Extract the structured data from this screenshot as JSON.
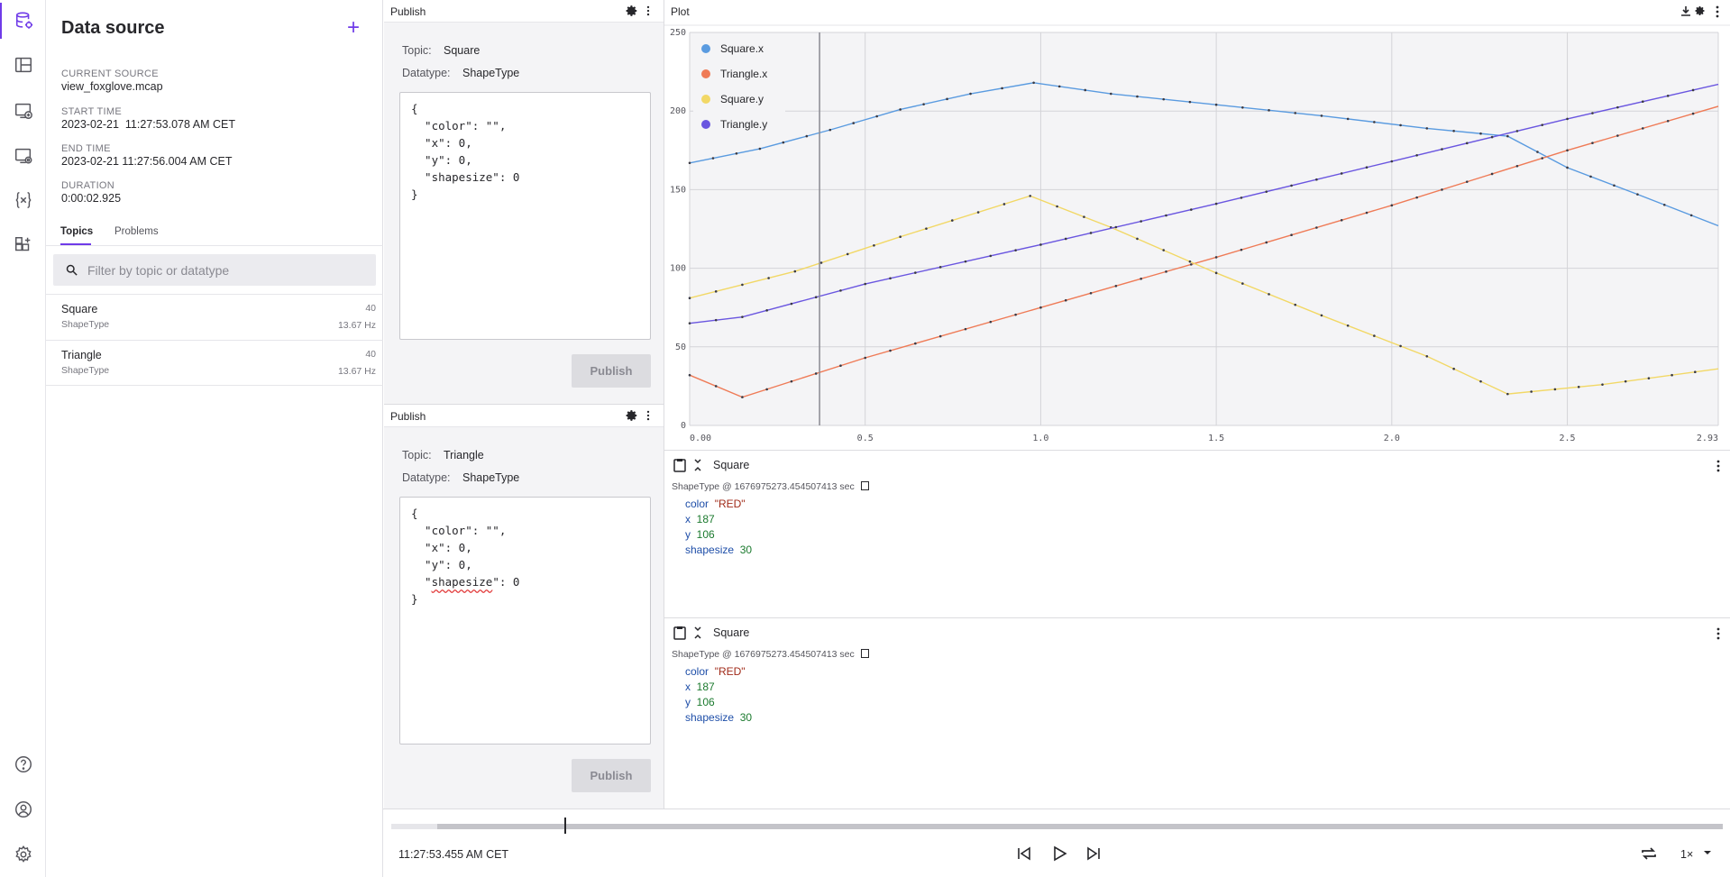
{
  "rail": {
    "icons": [
      "data-source-icon",
      "panels-icon",
      "add-panel-icon",
      "panel-settings-icon",
      "variables-icon",
      "extensions-icon",
      "help-icon",
      "user-icon",
      "settings-icon"
    ]
  },
  "sidebar": {
    "title": "Data source",
    "current_source_label": "CURRENT SOURCE",
    "current_source": "view_foxglove.mcap",
    "start_time_label": "START TIME",
    "start_time": "2023-02-21  11:27:53.078 AM CET",
    "end_time_label": "END TIME",
    "end_time": "2023-02-21 11:27:56.004 AM CET",
    "duration_label": "DURATION",
    "duration": "0:00:02.925",
    "tabs": [
      {
        "label": "Topics"
      },
      {
        "label": "Problems"
      }
    ],
    "filter_placeholder": "Filter by topic or datatype",
    "topics": [
      {
        "name": "Square",
        "type": "ShapeType",
        "count": "40",
        "hz": "13.67 Hz"
      },
      {
        "name": "Triangle",
        "type": "ShapeType",
        "count": "40",
        "hz": "13.67 Hz"
      }
    ]
  },
  "publish_panels": [
    {
      "title": "Publish",
      "topic_label": "Topic:",
      "topic": "Square",
      "datatype_label": "Datatype:",
      "datatype": "ShapeType",
      "editor_lines": [
        "{",
        "  \"color\": \"\",",
        "  \"x\": 0,",
        "  \"y\": 0,",
        "  \"shapesize\": 0",
        "}"
      ],
      "button": "Publish"
    },
    {
      "title": "Publish",
      "topic_label": "Topic:",
      "topic": "Triangle",
      "datatype_label": "Datatype:",
      "datatype": "ShapeType",
      "editor_lines": [
        "{",
        "  \"color\": \"\",",
        "  \"x\": 0,",
        "  \"y\": 0,",
        "  \"shapesize\": 0",
        "}"
      ],
      "button": "Publish"
    }
  ],
  "plot_panel": {
    "title": "Plot"
  },
  "chart_data": {
    "type": "line",
    "xlim": [
      0,
      2.93
    ],
    "ylim": [
      0,
      250
    ],
    "x_ticks": [
      "0.00",
      "0.5",
      "1.0",
      "1.5",
      "2.0",
      "2.5",
      "2.93"
    ],
    "y_ticks": [
      "0",
      "50",
      "100",
      "150",
      "200",
      "250"
    ],
    "grid": true,
    "legend_position": "top-left",
    "cursor_x": 0.37,
    "series": [
      {
        "name": "Square.x",
        "color": "#5a9be0",
        "points": [
          [
            0.0,
            167
          ],
          [
            0.2,
            176
          ],
          [
            0.4,
            188
          ],
          [
            0.6,
            201
          ],
          [
            0.8,
            211
          ],
          [
            0.98,
            218
          ],
          [
            1.2,
            211
          ],
          [
            1.5,
            204
          ],
          [
            1.8,
            197
          ],
          [
            2.1,
            189
          ],
          [
            2.33,
            184
          ],
          [
            2.5,
            164
          ],
          [
            2.7,
            147
          ],
          [
            2.93,
            127
          ]
        ]
      },
      {
        "name": "Triangle.x",
        "color": "#ef7b57",
        "points": [
          [
            0.0,
            32
          ],
          [
            0.15,
            18
          ],
          [
            0.5,
            43
          ],
          [
            1.0,
            75
          ],
          [
            1.5,
            107
          ],
          [
            2.0,
            140
          ],
          [
            2.5,
            175
          ],
          [
            2.93,
            203
          ]
        ]
      },
      {
        "name": "Square.y",
        "color": "#f2d866",
        "points": [
          [
            0.0,
            81
          ],
          [
            0.3,
            98
          ],
          [
            0.6,
            120
          ],
          [
            0.97,
            146
          ],
          [
            1.2,
            126
          ],
          [
            1.5,
            97
          ],
          [
            1.8,
            70
          ],
          [
            2.1,
            44
          ],
          [
            2.33,
            20
          ],
          [
            2.6,
            26
          ],
          [
            2.93,
            36
          ]
        ]
      },
      {
        "name": "Triangle.y",
        "color": "#6a56e0",
        "points": [
          [
            0.0,
            65
          ],
          [
            0.15,
            69
          ],
          [
            0.5,
            90
          ],
          [
            1.0,
            115
          ],
          [
            1.5,
            141
          ],
          [
            2.0,
            168
          ],
          [
            2.5,
            195
          ],
          [
            2.93,
            217
          ]
        ]
      }
    ]
  },
  "raw_panels": [
    {
      "topic": "Square",
      "header": "ShapeType @ 1676975273.454507413 sec",
      "fields": [
        {
          "key": "color",
          "value": "\"RED\"",
          "kind": "string"
        },
        {
          "key": "x",
          "value": "187",
          "kind": "number"
        },
        {
          "key": "y",
          "value": "106",
          "kind": "number"
        },
        {
          "key": "shapesize",
          "value": "30",
          "kind": "number"
        }
      ]
    },
    {
      "topic": "Square",
      "header": "ShapeType @ 1676975273.454507413 sec",
      "fields": [
        {
          "key": "color",
          "value": "\"RED\"",
          "kind": "string"
        },
        {
          "key": "x",
          "value": "187",
          "kind": "number"
        },
        {
          "key": "y",
          "value": "106",
          "kind": "number"
        },
        {
          "key": "shapesize",
          "value": "30",
          "kind": "number"
        }
      ]
    }
  ],
  "playback": {
    "timestamp": "11:27:53.455 AM CET",
    "speed": "1×",
    "progress": 0.13
  }
}
